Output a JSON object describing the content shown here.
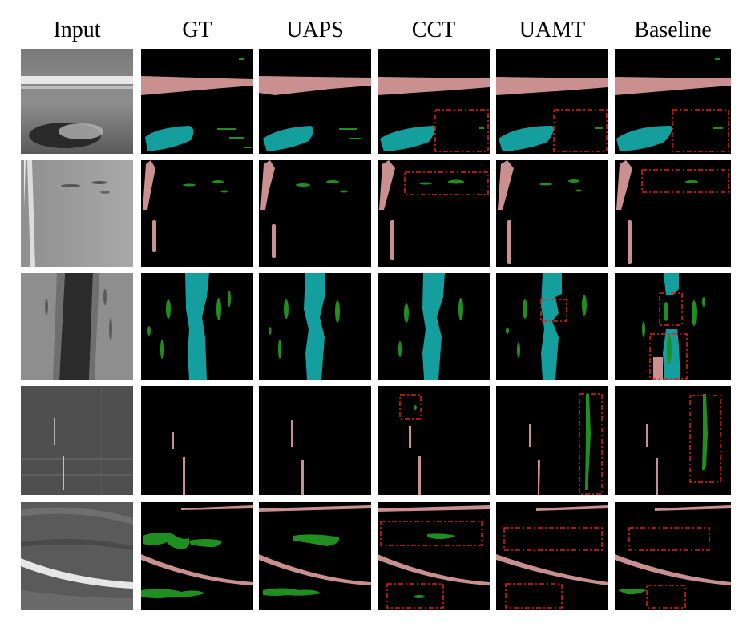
{
  "columns": [
    "Input",
    "GT",
    "UAPS",
    "CCT",
    "UAMT",
    "Baseline"
  ],
  "legend_colors": {
    "background": "#000000",
    "class_pink": "#C9908F",
    "class_teal": "#159E9E",
    "class_green": "#1F8F1F",
    "highlight_box": "#E02020"
  }
}
